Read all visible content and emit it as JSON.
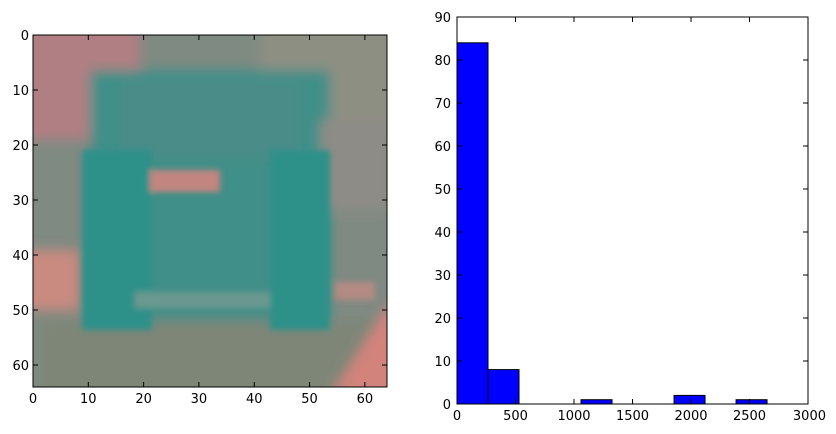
{
  "chart_data": [
    {
      "type": "heatmap",
      "title": "",
      "xlabel": "",
      "ylabel": "",
      "xlim": [
        0,
        64
      ],
      "ylim": [
        64,
        0
      ],
      "xticks": [
        0,
        10,
        20,
        30,
        40,
        50,
        60
      ],
      "yticks": [
        0,
        10,
        20,
        30,
        40,
        50,
        60
      ],
      "content": "blurred car rear view, teal and pink tones"
    },
    {
      "type": "bar",
      "title": "",
      "xlabel": "",
      "ylabel": "",
      "xlim": [
        0,
        3000
      ],
      "ylim": [
        0,
        90
      ],
      "xticks": [
        0,
        500,
        1000,
        1500,
        2000,
        2500,
        3000
      ],
      "yticks": [
        0,
        10,
        20,
        30,
        40,
        50,
        60,
        70,
        80,
        90
      ],
      "bar_color": "#0000ff",
      "bins": [
        {
          "x0": 0,
          "x1": 265,
          "count": 84
        },
        {
          "x0": 265,
          "x1": 530,
          "count": 8
        },
        {
          "x0": 530,
          "x1": 795,
          "count": 0
        },
        {
          "x0": 795,
          "x1": 1060,
          "count": 0
        },
        {
          "x0": 1060,
          "x1": 1325,
          "count": 1
        },
        {
          "x0": 1325,
          "x1": 1590,
          "count": 0
        },
        {
          "x0": 1590,
          "x1": 1855,
          "count": 0
        },
        {
          "x0": 1855,
          "x1": 2120,
          "count": 2
        },
        {
          "x0": 2120,
          "x1": 2385,
          "count": 0
        },
        {
          "x0": 2385,
          "x1": 2650,
          "count": 1
        }
      ]
    }
  ]
}
